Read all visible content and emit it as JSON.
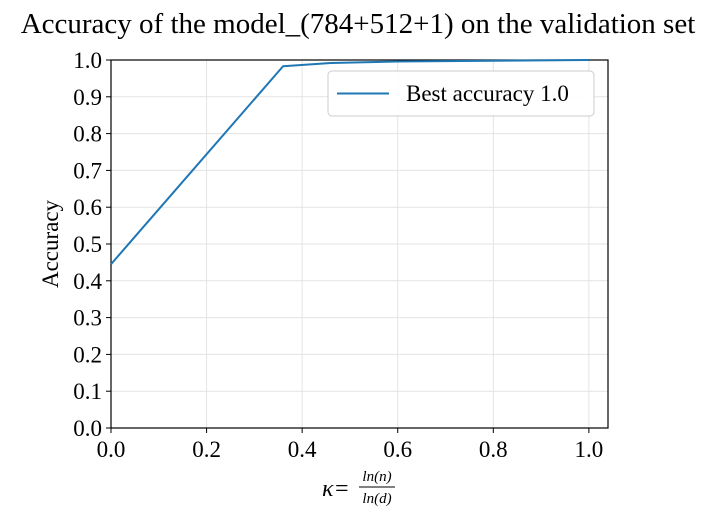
{
  "chart_data": {
    "type": "line",
    "title": "Accuracy of the model_(784+512+1) on the validation set",
    "ylabel": "Accuracy",
    "xlabel": {
      "prefix": "κ=",
      "numerator": "ln(n)",
      "denominator": "ln(d)"
    },
    "xlim": [
      0.0,
      1.04
    ],
    "ylim": [
      0.0,
      1.0
    ],
    "xticks": [
      0.0,
      0.2,
      0.4,
      0.6,
      0.8,
      1.0
    ],
    "xtick_labels": [
      "0.0",
      "0.2",
      "0.4",
      "0.6",
      "0.8",
      "1.0"
    ],
    "yticks": [
      0.0,
      0.1,
      0.2,
      0.3,
      0.4,
      0.5,
      0.6,
      0.7,
      0.8,
      0.9,
      1.0
    ],
    "ytick_labels": [
      "0.0",
      "0.1",
      "0.2",
      "0.3",
      "0.4",
      "0.5",
      "0.6",
      "0.7",
      "0.8",
      "0.9",
      "1.0"
    ],
    "grid": true,
    "legend_position": "upper-right",
    "series": [
      {
        "name": "Best accuracy 1.0",
        "color": "#1f77b4",
        "x": [
          0.0,
          0.36,
          0.46,
          0.6,
          0.8,
          1.0
        ],
        "y": [
          0.445,
          0.983,
          0.992,
          0.996,
          0.998,
          1.0
        ]
      }
    ]
  }
}
